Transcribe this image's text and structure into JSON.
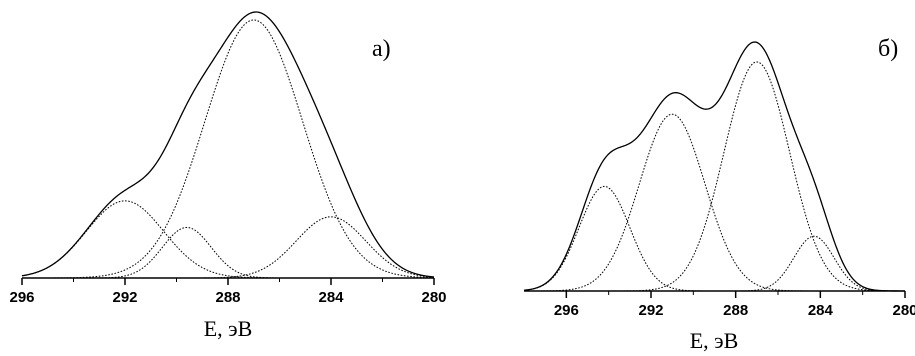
{
  "chart_data": [
    {
      "type": "line",
      "panel_label": "а)",
      "xlabel": "E, эВ",
      "ylabel": "",
      "title": "",
      "x_reversed": true,
      "xlim": [
        296,
        280
      ],
      "xticks": [
        296,
        292,
        288,
        284,
        280
      ],
      "xtick_labels": [
        "296",
        "292",
        "288",
        "284",
        "280"
      ],
      "grid": false,
      "components": [
        {
          "center": 292.0,
          "amplitude": 0.29,
          "sigma": 1.5
        },
        {
          "center": 289.6,
          "amplitude": 0.19,
          "sigma": 0.95
        },
        {
          "center": 287.0,
          "amplitude": 0.97,
          "sigma": 1.9
        },
        {
          "center": 284.0,
          "amplitude": 0.23,
          "sigma": 1.35
        }
      ],
      "envelope_peak": {
        "x": 287.0,
        "y": 1.0
      },
      "series": [
        {
          "style": "solid",
          "role": "envelope"
        },
        {
          "style": "dotted",
          "role": "components"
        }
      ]
    },
    {
      "type": "line",
      "panel_label": "б)",
      "xlabel": "E, эВ",
      "ylabel": "",
      "title": "",
      "x_reversed": true,
      "xlim": [
        298,
        280
      ],
      "xticks": [
        296,
        292,
        288,
        284,
        280
      ],
      "xtick_labels": [
        "296",
        "292",
        "288",
        "284",
        "280"
      ],
      "grid": false,
      "components": [
        {
          "center": 294.2,
          "amplitude": 0.42,
          "sigma": 1.2
        },
        {
          "center": 291.0,
          "amplitude": 0.71,
          "sigma": 1.55
        },
        {
          "center": 287.0,
          "amplitude": 0.92,
          "sigma": 1.55
        },
        {
          "center": 284.3,
          "amplitude": 0.22,
          "sigma": 0.95
        }
      ],
      "envelope_peak": {
        "x": 287.2,
        "y": 1.0
      },
      "series": [
        {
          "style": "solid",
          "role": "envelope"
        },
        {
          "style": "dotted",
          "role": "components"
        }
      ]
    }
  ]
}
